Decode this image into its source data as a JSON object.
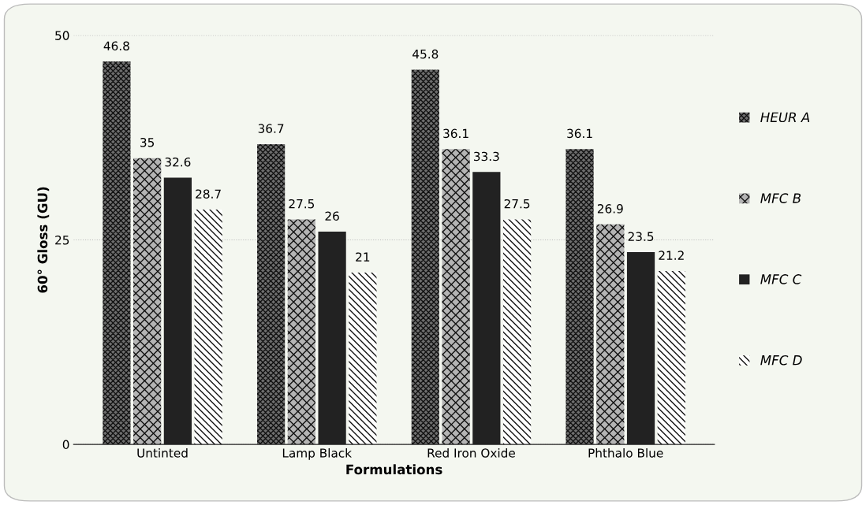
{
  "chart_data": {
    "type": "bar",
    "xlabel": "Formulations",
    "ylabel": "60° Gloss (GU)",
    "categories": [
      "Untinted",
      "Lamp Black",
      "Red Iron Oxide",
      "Phthalo Blue"
    ],
    "series": [
      {
        "name": "HEUR A",
        "color": "#6e6e6e",
        "values": [
          46.8,
          36.7,
          45.8,
          36.1
        ]
      },
      {
        "name": "MFC B",
        "color": "#b4b4b4",
        "values": [
          35,
          27.5,
          36.1,
          26.9
        ]
      },
      {
        "name": "MFC C",
        "color": "#222222",
        "values": [
          32.6,
          26,
          33.3,
          23.5
        ]
      },
      {
        "name": "MFC D",
        "color": "#ffffff",
        "values": [
          28.7,
          21,
          27.5,
          21.2
        ]
      }
    ],
    "ylim": [
      0,
      50
    ],
    "yticks": [
      0,
      25,
      50
    ],
    "grid": "y",
    "legend": "right",
    "data_labels": true
  }
}
